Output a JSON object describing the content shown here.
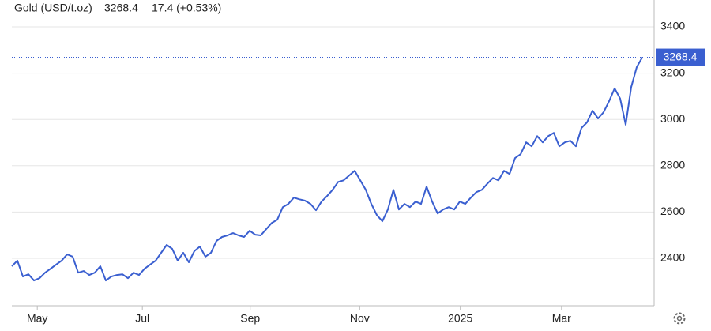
{
  "chart_data": {
    "type": "line",
    "title": "Gold (USD/t.oz)",
    "price": 3268.4,
    "change": "17.4 (+0.53%)",
    "color": "#3a5fd0",
    "change_color": "#4caf50",
    "values": [
      2366,
      2390,
      2321,
      2331,
      2304,
      2314,
      2338,
      2355,
      2373,
      2390,
      2417,
      2407,
      2338,
      2345,
      2328,
      2338,
      2366,
      2304,
      2321,
      2328,
      2331,
      2314,
      2338,
      2328,
      2355,
      2373,
      2390,
      2424,
      2458,
      2441,
      2390,
      2424,
      2383,
      2431,
      2451,
      2407,
      2424,
      2475,
      2492,
      2499,
      2509,
      2499,
      2492,
      2519,
      2502,
      2499,
      2526,
      2553,
      2567,
      2621,
      2635,
      2662,
      2655,
      2649,
      2635,
      2608,
      2645,
      2669,
      2696,
      2730,
      2737,
      2758,
      2778,
      2737,
      2696,
      2635,
      2587,
      2560,
      2611,
      2696,
      2611,
      2635,
      2621,
      2645,
      2635,
      2710,
      2645,
      2594,
      2611,
      2621,
      2611,
      2645,
      2635,
      2662,
      2686,
      2696,
      2723,
      2747,
      2737,
      2778,
      2764,
      2833,
      2850,
      2901,
      2884,
      2928,
      2901,
      2928,
      2942,
      2884,
      2901,
      2908,
      2884,
      2963,
      2987,
      3038,
      3004,
      3031,
      3079,
      3134,
      3090,
      2977,
      3140,
      3226,
      3268.4
    ],
    "xlim": [
      0,
      114
    ],
    "xticks": [
      {
        "value": 4.6,
        "label": "May"
      },
      {
        "value": 23.6,
        "label": "Jul"
      },
      {
        "value": 43.1,
        "label": "Sep"
      },
      {
        "value": 62.9,
        "label": "Nov"
      },
      {
        "value": 81.1,
        "label": "2025"
      },
      {
        "value": 99.4,
        "label": "Mar"
      }
    ],
    "ylim": [
      2200,
      3500
    ],
    "yticks": [
      2400,
      2600,
      2800,
      3000,
      3200,
      3400
    ],
    "grid": true
  }
}
